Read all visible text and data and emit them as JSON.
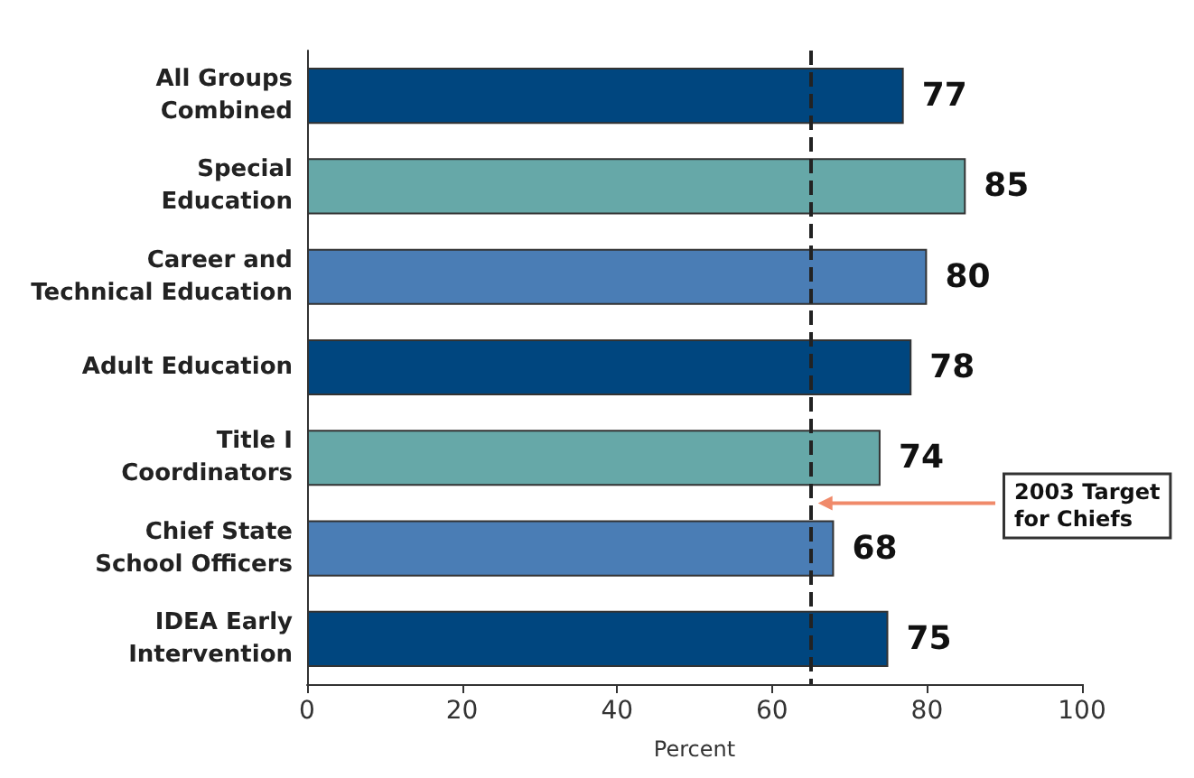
{
  "chart_data": {
    "type": "bar",
    "orientation": "horizontal",
    "xlabel": "Percent",
    "categories": [
      "All Groups\nCombined",
      "Special\nEducation",
      "Career and\nTechnical Education",
      "Adult Education",
      "Title I\nCoordinators",
      "Chief State\nSchool Officers",
      "IDEA Early\nIntervention"
    ],
    "values": [
      77,
      85,
      80,
      78,
      74,
      68,
      75
    ],
    "colors": [
      "#00467f",
      "#66a8a8",
      "#4a7db5",
      "#00467f",
      "#66a8a8",
      "#4a7db5",
      "#00467f"
    ],
    "xlim": [
      0,
      100
    ],
    "xticks": [
      0,
      20,
      40,
      60,
      80,
      100
    ],
    "grid": false,
    "data_labels": true,
    "ref_lines": [
      {
        "axis": "x",
        "value": 65,
        "label": "2003 Target\nfor Chiefs",
        "color": "#222222",
        "line_style": "dashed"
      }
    ]
  }
}
